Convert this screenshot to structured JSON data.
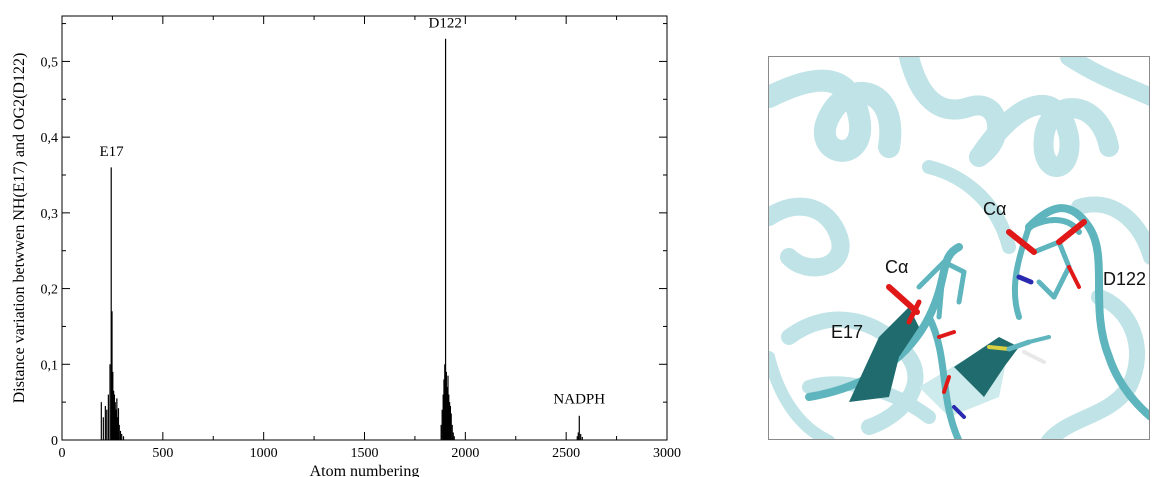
{
  "chart_data": {
    "type": "bar",
    "xlabel": "Atom numbering",
    "ylabel": "Distance variation betwwen NH(E17) and OG2(D122)",
    "xlim": [
      0,
      3000
    ],
    "ylim": [
      0,
      0.56
    ],
    "x_ticks": [
      "0",
      "500",
      "1000",
      "1500",
      "2000",
      "2500",
      "3000"
    ],
    "y_ticks": [
      "0",
      "0,1",
      "0,2",
      "0,3",
      "0,4",
      "0,5"
    ],
    "series": [
      {
        "x": [
          195,
          205,
          215,
          222,
          230,
          238,
          244,
          248,
          252,
          256,
          260,
          264,
          268,
          272,
          276,
          280,
          284,
          290,
          296,
          305,
          1880,
          1885,
          1890,
          1894,
          1898,
          1902,
          1906,
          1910,
          1914,
          1918,
          1922,
          1926,
          1930,
          1935,
          1940,
          1945,
          2555,
          2560,
          2565,
          2572,
          2580
        ],
        "values": [
          0.05,
          0.03,
          0.045,
          0.04,
          0.06,
          0.1,
          0.36,
          0.17,
          0.09,
          0.065,
          0.06,
          0.05,
          0.04,
          0.055,
          0.03,
          0.042,
          0.02,
          0.012,
          0.008,
          0.005,
          0.02,
          0.04,
          0.06,
          0.08,
          0.1,
          0.53,
          0.09,
          0.07,
          0.085,
          0.06,
          0.05,
          0.045,
          0.035,
          0.02,
          0.01,
          0.005,
          0.005,
          0.01,
          0.032,
          0.008,
          0.004
        ]
      }
    ],
    "annotations": [
      {
        "text": "E17",
        "x": 246,
        "y": 0.375
      },
      {
        "text": "D122",
        "x": 1900,
        "y": 0.545
      },
      {
        "text": "NADPH",
        "x": 2565,
        "y": 0.048
      }
    ],
    "colors": {
      "bars": "#000000",
      "frame": "#000000"
    }
  },
  "molecule_image": {
    "labels": {
      "ca_left": "Cα",
      "ca_right": "Cα",
      "e17": "E17",
      "d122": "D122"
    },
    "colors": {
      "ribbon_light": "#bfe3e6",
      "ribbon_mid": "#5fb5bd",
      "ribbon_dark": "#1f6b6d",
      "oxygen": "#e01818",
      "nitrogen": "#2a2ab0",
      "sulfur": "#d8d040",
      "hydrogen": "#e8e8e8"
    }
  }
}
